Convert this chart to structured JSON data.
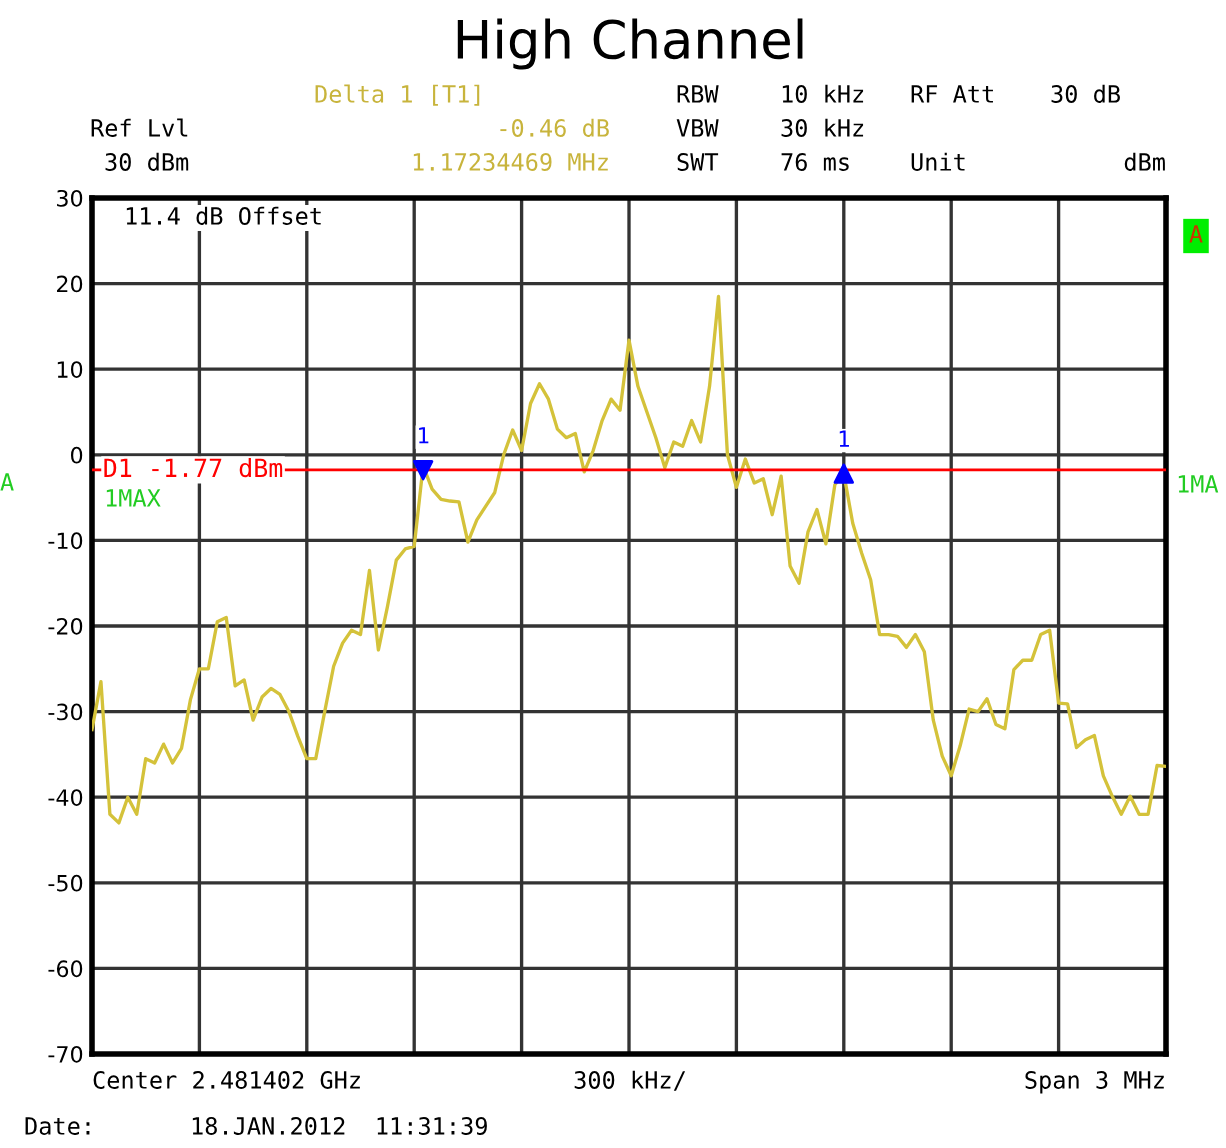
{
  "chart_data": {
    "type": "line",
    "title": "High Channel",
    "categories": [
      null,
      null,
      null,
      null,
      null,
      null,
      null,
      null,
      null,
      null,
      null,
      null,
      null,
      null,
      null,
      null,
      null,
      null,
      null,
      null,
      null,
      null,
      null,
      null,
      null,
      null,
      null,
      null,
      null,
      null,
      null,
      null,
      null,
      null,
      null,
      null,
      null,
      null,
      null,
      null,
      null,
      null,
      null,
      null,
      null,
      null,
      null,
      null,
      null,
      null,
      null,
      null,
      null,
      null,
      null,
      null,
      null,
      null,
      null,
      null,
      null,
      null,
      null,
      null,
      null,
      null,
      null,
      null,
      null,
      null,
      null,
      null,
      null,
      null,
      null,
      null,
      null,
      null,
      null,
      null,
      null,
      null,
      null,
      null,
      null,
      null,
      null,
      null,
      null,
      null,
      null,
      null,
      null,
      null,
      null,
      null,
      null,
      null,
      null,
      null,
      null,
      null,
      null,
      null,
      null,
      null,
      null,
      null,
      null,
      null,
      null,
      null,
      null,
      null,
      null,
      null,
      null,
      null,
      null,
      null,
      null
    ],
    "ylim": [
      -70,
      30
    ],
    "yticks": [
      -70,
      -60,
      -50,
      -40,
      -30,
      -20,
      -10,
      0,
      10,
      20,
      30
    ],
    "grid": true,
    "tick_labels": "y",
    "series": [
      {
        "color": "#d4c23a",
        "values": [
          -32.1,
          -26.5,
          -42,
          -43,
          -40,
          -42,
          -35.5,
          -36,
          -33.8,
          -36,
          -34.3,
          -28.6,
          -25,
          -25,
          -19.5,
          -19,
          -27,
          -26.3,
          -31,
          -28.3,
          -27.3,
          -28,
          -30,
          -32.9,
          -35.5,
          -35.5,
          -30,
          -24.7,
          -22,
          -20.5,
          -21,
          -13.5,
          -22.8,
          -17.8,
          -12.3,
          -11,
          -10.7,
          -1.3,
          -4,
          -5.2,
          -5.4,
          -5.5,
          -10.2,
          -7.6,
          -6,
          -4.4,
          0,
          2.9,
          0.5,
          6,
          8.3,
          6.5,
          3,
          2,
          2.5,
          -2,
          0.5,
          4,
          6.5,
          5.2,
          13.4,
          8,
          5,
          2,
          -1.5,
          1.5,
          1,
          4,
          1.5,
          8,
          18.5,
          0,
          -3.8,
          -0.5,
          -3.3,
          -2.8,
          -7,
          -2.5,
          -13,
          -15,
          -9,
          -6.4,
          -10.4,
          -3.5,
          -2.2,
          -8,
          -11.5,
          -14.6,
          -21,
          -21,
          -21.2,
          -22.5,
          -21,
          -23,
          -31,
          -35.2,
          -37.5,
          -34,
          -29.7,
          -30,
          -28.5,
          -31.5,
          -32,
          -25.1,
          -24,
          -24,
          -21,
          -20.5,
          -29,
          -29.1,
          -34.2,
          -33.3,
          -32.8,
          -37.5,
          -39.9,
          -42,
          -39.9,
          -42,
          -42,
          -36.3,
          -36.4
        ]
      },
      {
        "type": "scatter",
        "color": "#0000ff",
        "marker": "triangle",
        "values": [
          null,
          null,
          null,
          null,
          null,
          null,
          null,
          null,
          null,
          null,
          null,
          null,
          null,
          null,
          null,
          null,
          null,
          null,
          null,
          null,
          null,
          null,
          null,
          null,
          null,
          null,
          null,
          null,
          null,
          null,
          null,
          null,
          null,
          null,
          null,
          null,
          null,
          -1.8,
          null,
          null,
          null,
          null,
          null,
          null,
          null,
          null,
          null,
          null,
          null,
          null,
          null,
          null,
          null,
          null,
          null,
          null,
          null,
          null,
          null,
          null,
          null,
          null,
          null,
          null,
          null,
          null,
          null,
          null,
          null,
          null,
          null,
          null,
          null,
          null,
          null,
          null,
          null,
          null,
          null,
          null,
          null,
          null,
          null,
          null,
          -2.2,
          null,
          null,
          null,
          null,
          null,
          null,
          null,
          null,
          null,
          null,
          null,
          null,
          null,
          null,
          null,
          null,
          null,
          null,
          null,
          null,
          null,
          null,
          null,
          null,
          null,
          null,
          null,
          null,
          null,
          null,
          null,
          null,
          null,
          null,
          null,
          null
        ]
      }
    ],
    "ref_lines": [
      {
        "axis": "y",
        "value": -1.77,
        "label": "D1 -1.77 dBm",
        "color": "#ff0000",
        "line_style": "solid"
      }
    ],
    "annotations": [
      "Delta 1 [T1]",
      "-0.46 dB",
      "1.17234469 MHz",
      "RBW",
      "10 kHz",
      "RF Att",
      "30 dB",
      "VBW",
      "30 kHz",
      "SWT",
      "76 ms",
      "Unit",
      "dBm",
      "Ref Lvl",
      "30 dBm",
      "11.4 dB Offset",
      "1MAX",
      "A",
      "A",
      "1MA",
      "Center 2.481402 GHz",
      "300 kHz/",
      "Span 3 MHz",
      "Date:",
      "18.JAN.2012  11:31:39",
      "1",
      "1"
    ]
  }
}
